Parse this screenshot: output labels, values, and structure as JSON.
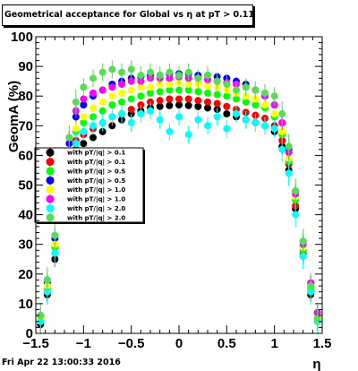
{
  "title": "Geometrical acceptance for Global vs  η at pT > 0.11",
  "footer": "Fri Apr 22 13:00:33 2016",
  "chart_data": {
    "type": "scatter",
    "title": "Geometrical acceptance for Global vs  η at pT > 0.11",
    "xlabel": "η",
    "ylabel": "GeomA (%)",
    "xlim": [
      -1.5,
      1.5
    ],
    "ylim": [
      0,
      100
    ],
    "x_ticks": [
      "−1.5",
      "−1",
      "−0.5",
      "0",
      "0.5",
      "1",
      "1.5"
    ],
    "y_ticks": [
      "0",
      "10",
      "20",
      "30",
      "40",
      "50",
      "60",
      "70",
      "80",
      "90",
      "100"
    ],
    "legend_position": "left",
    "series": [
      {
        "name": "with pT/|q| > 0.1",
        "color": "#000000",
        "points": [
          [
            -1.45,
            3
          ],
          [
            -1.38,
            13
          ],
          [
            -1.3,
            25
          ],
          [
            -1.22,
            40
          ],
          [
            -1.15,
            55
          ],
          [
            -1.08,
            62
          ],
          [
            -1.0,
            64
          ],
          [
            -0.9,
            66
          ],
          [
            -0.8,
            68
          ],
          [
            -0.7,
            70
          ],
          [
            -0.6,
            72
          ],
          [
            -0.5,
            74
          ],
          [
            -0.4,
            75
          ],
          [
            -0.3,
            76
          ],
          [
            -0.2,
            76.5
          ],
          [
            -0.1,
            76.8
          ],
          [
            0.0,
            77
          ],
          [
            0.1,
            76.8
          ],
          [
            0.2,
            76.5
          ],
          [
            0.3,
            76
          ],
          [
            0.4,
            75.5
          ],
          [
            0.5,
            74
          ],
          [
            0.6,
            73
          ],
          [
            0.7,
            72
          ],
          [
            0.8,
            71
          ],
          [
            0.9,
            70
          ],
          [
            1.0,
            68
          ],
          [
            1.08,
            63
          ],
          [
            1.15,
            55
          ],
          [
            1.22,
            42
          ],
          [
            1.3,
            26
          ],
          [
            1.38,
            13
          ],
          [
            1.45,
            4
          ]
        ]
      },
      {
        "name": "with pT/|q| > 0.1",
        "color": "#ff0000",
        "points": [
          [
            -1.45,
            4
          ],
          [
            -1.38,
            14
          ],
          [
            -1.3,
            27
          ],
          [
            -1.22,
            43
          ],
          [
            -1.15,
            57
          ],
          [
            -1.08,
            65
          ],
          [
            -1.0,
            67
          ],
          [
            -0.9,
            69
          ],
          [
            -0.8,
            71
          ],
          [
            -0.7,
            73
          ],
          [
            -0.6,
            74
          ],
          [
            -0.5,
            75.5
          ],
          [
            -0.4,
            77
          ],
          [
            -0.3,
            78
          ],
          [
            -0.2,
            78.5
          ],
          [
            -0.1,
            79
          ],
          [
            0.0,
            79
          ],
          [
            0.1,
            79
          ],
          [
            0.2,
            78.5
          ],
          [
            0.3,
            78
          ],
          [
            0.4,
            77.5
          ],
          [
            0.5,
            76.5
          ],
          [
            0.6,
            75.5
          ],
          [
            0.7,
            74.5
          ],
          [
            0.8,
            73.5
          ],
          [
            0.9,
            72.5
          ],
          [
            1.0,
            70
          ],
          [
            1.08,
            65
          ],
          [
            1.15,
            57
          ],
          [
            1.22,
            43
          ],
          [
            1.3,
            27
          ],
          [
            1.38,
            14
          ],
          [
            1.45,
            5
          ]
        ]
      },
      {
        "name": "with pT/|q| > 0.5",
        "color": "#00ff00",
        "points": [
          [
            -1.45,
            5
          ],
          [
            -1.38,
            15
          ],
          [
            -1.3,
            29
          ],
          [
            -1.22,
            45
          ],
          [
            -1.15,
            60
          ],
          [
            -1.08,
            68
          ],
          [
            -1.0,
            71
          ],
          [
            -0.9,
            73
          ],
          [
            -0.8,
            75
          ],
          [
            -0.7,
            77
          ],
          [
            -0.6,
            78
          ],
          [
            -0.5,
            79
          ],
          [
            -0.4,
            80
          ],
          [
            -0.3,
            81
          ],
          [
            -0.2,
            81.5
          ],
          [
            -0.1,
            82
          ],
          [
            0.0,
            82
          ],
          [
            0.1,
            82
          ],
          [
            0.2,
            81.5
          ],
          [
            0.3,
            81
          ],
          [
            0.4,
            80.5
          ],
          [
            0.5,
            80
          ],
          [
            0.6,
            79
          ],
          [
            0.7,
            78
          ],
          [
            0.8,
            77
          ],
          [
            0.9,
            76
          ],
          [
            1.0,
            73
          ],
          [
            1.08,
            67
          ],
          [
            1.15,
            58
          ],
          [
            1.22,
            45
          ],
          [
            1.3,
            28
          ],
          [
            1.38,
            15
          ],
          [
            1.45,
            6
          ]
        ]
      },
      {
        "name": "with pT/|q| > 0.5",
        "color": "#0000ff",
        "points": [
          [
            -1.45,
            6
          ],
          [
            -1.38,
            17
          ],
          [
            -1.3,
            32
          ],
          [
            -1.22,
            48
          ],
          [
            -1.15,
            64
          ],
          [
            -1.08,
            73
          ],
          [
            -1.0,
            77
          ],
          [
            -0.9,
            80
          ],
          [
            -0.8,
            82
          ],
          [
            -0.7,
            84
          ],
          [
            -0.6,
            85
          ],
          [
            -0.5,
            86
          ],
          [
            -0.4,
            86.5
          ],
          [
            -0.3,
            87
          ],
          [
            -0.2,
            87
          ],
          [
            -0.1,
            87.5
          ],
          [
            0.0,
            87.5
          ],
          [
            0.1,
            87.5
          ],
          [
            0.2,
            87
          ],
          [
            0.3,
            87
          ],
          [
            0.4,
            86.5
          ],
          [
            0.5,
            86
          ],
          [
            0.6,
            85
          ],
          [
            0.7,
            84
          ],
          [
            0.8,
            82
          ],
          [
            0.9,
            80
          ],
          [
            1.0,
            77
          ],
          [
            1.08,
            71
          ],
          [
            1.15,
            62
          ],
          [
            1.22,
            48
          ],
          [
            1.3,
            31
          ],
          [
            1.38,
            17
          ],
          [
            1.45,
            7
          ]
        ]
      },
      {
        "name": "with pT/|q| > 1.0",
        "color": "#ffff00",
        "points": [
          [
            -1.45,
            5
          ],
          [
            -1.38,
            16
          ],
          [
            -1.3,
            30
          ],
          [
            -1.22,
            46
          ],
          [
            -1.15,
            61
          ],
          [
            -1.08,
            69
          ],
          [
            -1.0,
            73
          ],
          [
            -0.9,
            76
          ],
          [
            -0.8,
            78
          ],
          [
            -0.7,
            80
          ],
          [
            -0.6,
            81
          ],
          [
            -0.5,
            82
          ],
          [
            -0.4,
            83
          ],
          [
            -0.3,
            83
          ],
          [
            -0.2,
            84
          ],
          [
            -0.1,
            84
          ],
          [
            0.0,
            84.5
          ],
          [
            0.1,
            84
          ],
          [
            0.2,
            84
          ],
          [
            0.3,
            83.5
          ],
          [
            0.4,
            83
          ],
          [
            0.5,
            82
          ],
          [
            0.6,
            81
          ],
          [
            0.7,
            80
          ],
          [
            0.8,
            79
          ],
          [
            0.9,
            77
          ],
          [
            1.0,
            74
          ],
          [
            1.08,
            68
          ],
          [
            1.15,
            59
          ],
          [
            1.22,
            46
          ],
          [
            1.3,
            29
          ],
          [
            1.38,
            16
          ],
          [
            1.45,
            6
          ]
        ]
      },
      {
        "name": "with pT/|q| > 1.0",
        "color": "#ff00ff",
        "points": [
          [
            -1.45,
            6
          ],
          [
            -1.38,
            18
          ],
          [
            -1.3,
            33
          ],
          [
            -1.22,
            50
          ],
          [
            -1.15,
            66
          ],
          [
            -1.08,
            75
          ],
          [
            -1.0,
            79
          ],
          [
            -0.9,
            81
          ],
          [
            -0.8,
            82
          ],
          [
            -0.7,
            83
          ],
          [
            -0.6,
            84
          ],
          [
            -0.5,
            85
          ],
          [
            -0.4,
            85
          ],
          [
            -0.3,
            86
          ],
          [
            -0.2,
            86
          ],
          [
            -0.1,
            86
          ],
          [
            0.0,
            86.5
          ],
          [
            0.1,
            86
          ],
          [
            0.2,
            86
          ],
          [
            0.3,
            85.5
          ],
          [
            0.4,
            85
          ],
          [
            0.5,
            84.5
          ],
          [
            0.6,
            84
          ],
          [
            0.7,
            83
          ],
          [
            0.8,
            82
          ],
          [
            0.9,
            80
          ],
          [
            1.0,
            77
          ],
          [
            1.08,
            71
          ],
          [
            1.15,
            61
          ],
          [
            1.22,
            47
          ],
          [
            1.3,
            30
          ],
          [
            1.38,
            17
          ],
          [
            1.45,
            7
          ]
        ]
      },
      {
        "name": "with pT/|q| > 2.0",
        "color": "#00ffff",
        "points": [
          [
            -1.45,
            4
          ],
          [
            -1.38,
            14
          ],
          [
            -1.3,
            27
          ],
          [
            -1.22,
            42
          ],
          [
            -1.15,
            56
          ],
          [
            -1.08,
            64
          ],
          [
            -1.0,
            68
          ],
          [
            -0.9,
            70
          ],
          [
            -0.8,
            71
          ],
          [
            -0.7,
            73
          ],
          [
            -0.6,
            74
          ],
          [
            -0.5,
            71
          ],
          [
            -0.4,
            74
          ],
          [
            -0.3,
            75
          ],
          [
            -0.2,
            72
          ],
          [
            -0.1,
            68
          ],
          [
            0.0,
            73
          ],
          [
            0.1,
            67
          ],
          [
            0.2,
            72
          ],
          [
            0.3,
            70
          ],
          [
            0.4,
            73
          ],
          [
            0.5,
            69
          ],
          [
            0.6,
            74
          ],
          [
            0.7,
            72
          ],
          [
            0.8,
            71
          ],
          [
            0.9,
            70
          ],
          [
            1.0,
            69
          ],
          [
            1.08,
            62
          ],
          [
            1.15,
            54
          ],
          [
            1.22,
            40
          ],
          [
            1.3,
            26
          ],
          [
            1.38,
            14
          ],
          [
            1.45,
            4
          ]
        ]
      },
      {
        "name": "with pT/|q| > 2.0",
        "color": "#55dd55",
        "points": [
          [
            -1.45,
            6
          ],
          [
            -1.38,
            18
          ],
          [
            -1.3,
            33
          ],
          [
            -1.22,
            50
          ],
          [
            -1.15,
            66
          ],
          [
            -1.08,
            78
          ],
          [
            -1.0,
            83
          ],
          [
            -0.9,
            86
          ],
          [
            -0.8,
            88
          ],
          [
            -0.7,
            89
          ],
          [
            -0.6,
            88
          ],
          [
            -0.5,
            89
          ],
          [
            -0.4,
            87
          ],
          [
            -0.3,
            88
          ],
          [
            -0.2,
            87
          ],
          [
            -0.1,
            88
          ],
          [
            0.0,
            87
          ],
          [
            0.1,
            88
          ],
          [
            0.2,
            86
          ],
          [
            0.3,
            87
          ],
          [
            0.4,
            85
          ],
          [
            0.5,
            84
          ],
          [
            0.6,
            82
          ],
          [
            0.7,
            83
          ],
          [
            0.8,
            82
          ],
          [
            0.9,
            81
          ],
          [
            1.0,
            80
          ],
          [
            1.08,
            74
          ],
          [
            1.15,
            63
          ],
          [
            1.22,
            48
          ],
          [
            1.3,
            31
          ],
          [
            1.38,
            16
          ],
          [
            1.45,
            5
          ]
        ]
      }
    ]
  }
}
